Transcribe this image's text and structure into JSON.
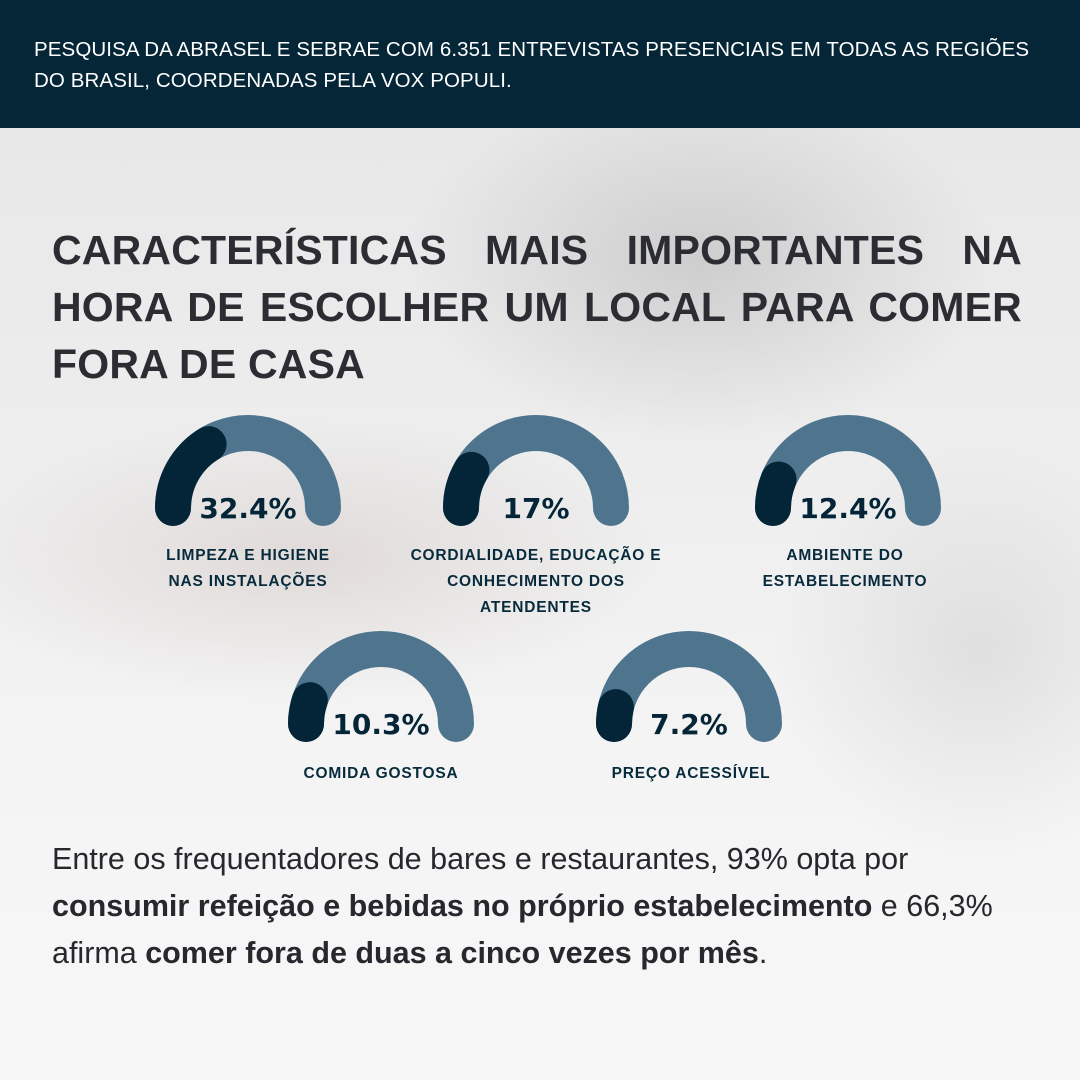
{
  "header": {
    "text": "PESQUISA DA ABRASEL E SEBRAE COM 6.351 ENTREVISTAS PRESENCIAIS EM TODAS AS REGIÕES DO BRASIL, COORDENADAS PELA VOX POPULI."
  },
  "chart_data": {
    "type": "gauge",
    "title": "CARACTERÍSTICAS MAIS IMPORTANTES NA HORA DE ESCOLHER UM LOCAL PARA COMER FORA DE CASA",
    "unit": "%",
    "max": 100,
    "items": [
      {
        "label": "LIMPEZA E HIGIENE NAS INSTALAÇÕES",
        "value": 32.4,
        "display": "32.4%"
      },
      {
        "label": "CORDIALIDADE, EDUCAÇÃO E CONHECIMENTO DOS ATENDENTES",
        "value": 17,
        "display": "17%"
      },
      {
        "label": "AMBIENTE DO ESTABELECIMENTO",
        "value": 12.4,
        "display": "12.4%"
      },
      {
        "label": "COMIDA GOSTOSA",
        "value": 10.3,
        "display": "10.3%"
      },
      {
        "label": "PREÇO ACESSÍVEL",
        "value": 7.2,
        "display": "7.2%"
      }
    ]
  },
  "footer": {
    "part1": "Entre os frequentadores de bares e restaurantes, 93% opta por ",
    "bold1": "consumir refeição e bebidas no próprio estabelecimento",
    "part2": " e 66,3% afirma ",
    "bold2": "comer fora de duas a cinco vezes por mês",
    "part3": "."
  },
  "colors": {
    "header_bg": "#042637",
    "gauge_track": "#4f758e",
    "gauge_fill": "#032537",
    "title": "#2b2d33"
  }
}
